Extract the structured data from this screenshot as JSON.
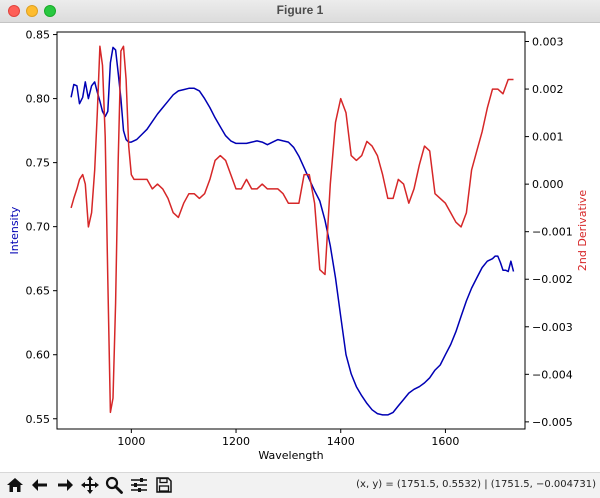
{
  "window": {
    "title": "Figure 1"
  },
  "toolbar": {
    "tools": [
      "home-icon",
      "back-arrow-icon",
      "forward-arrow-icon",
      "pan-icon",
      "zoom-icon",
      "configure-subplots-icon",
      "save-icon"
    ],
    "coords_text": "(x, y) = (1751.5, 0.5532) | (1751.5, −0.004731)"
  },
  "colors": {
    "intensity": "#0000b4",
    "derivative": "#d62728"
  },
  "chart_data": {
    "type": "line",
    "xlabel": "Wavelength",
    "ylabel_left": "Intensity",
    "ylabel_right": "2nd Derivative",
    "xlim": [
      858,
      1752
    ],
    "ylim_left": [
      0.542,
      0.852
    ],
    "ylim_right": [
      -0.00515,
      0.0032
    ],
    "x_ticks": [
      1000,
      1200,
      1400,
      1600
    ],
    "x_tick_labels": [
      "1000",
      "1200",
      "1400",
      "1600"
    ],
    "y_left_ticks": [
      0.55,
      0.6,
      0.65,
      0.7,
      0.75,
      0.8,
      0.85
    ],
    "y_left_tick_labels": [
      "0.55",
      "0.60",
      "0.65",
      "0.70",
      "0.75",
      "0.80",
      "0.85"
    ],
    "y_right_ticks": [
      -0.005,
      -0.004,
      -0.003,
      -0.002,
      -0.001,
      0.0,
      0.001,
      0.002,
      0.003
    ],
    "y_right_tick_labels": [
      "−0.005",
      "−0.004",
      "−0.003",
      "−0.002",
      "−0.001",
      "0.000",
      "0.001",
      "0.002",
      "0.003"
    ],
    "grid": false,
    "series": [
      {
        "axis": "left",
        "x": [
          885,
          890,
          896,
          901,
          907,
          912,
          918,
          924,
          930,
          935,
          940,
          945,
          950,
          955,
          960,
          965,
          970,
          975,
          980,
          985,
          990,
          995,
          1000,
          1010,
          1020,
          1030,
          1040,
          1050,
          1060,
          1070,
          1080,
          1090,
          1100,
          1110,
          1120,
          1130,
          1140,
          1150,
          1160,
          1170,
          1180,
          1190,
          1200,
          1210,
          1220,
          1230,
          1240,
          1250,
          1260,
          1270,
          1280,
          1290,
          1300,
          1310,
          1320,
          1330,
          1340,
          1350,
          1360,
          1370,
          1380,
          1390,
          1400,
          1410,
          1420,
          1430,
          1440,
          1450,
          1460,
          1470,
          1480,
          1490,
          1500,
          1510,
          1520,
          1530,
          1540,
          1550,
          1560,
          1570,
          1580,
          1590,
          1600,
          1610,
          1620,
          1630,
          1640,
          1650,
          1660,
          1670,
          1680,
          1690,
          1695,
          1700,
          1705,
          1710,
          1715,
          1720,
          1725,
          1730
        ],
        "y": [
          0.801,
          0.811,
          0.81,
          0.796,
          0.801,
          0.813,
          0.8,
          0.81,
          0.813,
          0.805,
          0.798,
          0.79,
          0.786,
          0.79,
          0.828,
          0.84,
          0.838,
          0.82,
          0.8,
          0.775,
          0.768,
          0.766,
          0.766,
          0.768,
          0.772,
          0.776,
          0.782,
          0.788,
          0.793,
          0.798,
          0.803,
          0.806,
          0.807,
          0.808,
          0.808,
          0.806,
          0.8,
          0.793,
          0.785,
          0.778,
          0.771,
          0.767,
          0.765,
          0.765,
          0.765,
          0.766,
          0.767,
          0.766,
          0.764,
          0.766,
          0.768,
          0.767,
          0.766,
          0.762,
          0.755,
          0.746,
          0.737,
          0.728,
          0.72,
          0.705,
          0.685,
          0.66,
          0.63,
          0.6,
          0.585,
          0.575,
          0.568,
          0.562,
          0.557,
          0.554,
          0.553,
          0.553,
          0.555,
          0.56,
          0.565,
          0.57,
          0.573,
          0.575,
          0.578,
          0.582,
          0.588,
          0.592,
          0.6,
          0.608,
          0.618,
          0.63,
          0.642,
          0.652,
          0.66,
          0.668,
          0.673,
          0.675,
          0.677,
          0.677,
          0.672,
          0.666,
          0.666,
          0.665,
          0.673,
          0.665
        ]
      },
      {
        "axis": "right",
        "x": [
          885,
          890,
          896,
          901,
          907,
          912,
          918,
          924,
          930,
          935,
          940,
          945,
          950,
          955,
          960,
          965,
          970,
          975,
          980,
          985,
          990,
          995,
          1000,
          1005,
          1010,
          1020,
          1030,
          1040,
          1050,
          1060,
          1070,
          1080,
          1090,
          1100,
          1110,
          1120,
          1130,
          1140,
          1150,
          1160,
          1170,
          1180,
          1190,
          1200,
          1210,
          1220,
          1230,
          1240,
          1250,
          1260,
          1270,
          1280,
          1290,
          1300,
          1310,
          1320,
          1330,
          1340,
          1350,
          1360,
          1370,
          1380,
          1390,
          1400,
          1410,
          1420,
          1430,
          1440,
          1450,
          1460,
          1470,
          1480,
          1490,
          1500,
          1510,
          1520,
          1530,
          1540,
          1550,
          1560,
          1570,
          1580,
          1590,
          1600,
          1610,
          1620,
          1630,
          1640,
          1650,
          1660,
          1670,
          1680,
          1690,
          1700,
          1710,
          1720,
          1730
        ],
        "y": [
          -0.0005,
          -0.0003,
          -0.0001,
          0.0001,
          0.0002,
          0.0,
          -0.0009,
          -0.0006,
          0.0003,
          0.0015,
          0.0029,
          0.0025,
          0.001,
          -0.002,
          -0.0048,
          -0.0045,
          -0.0025,
          0.0005,
          0.0028,
          0.0029,
          0.0022,
          0.0008,
          0.0002,
          0.0001,
          0.0001,
          0.0001,
          0.0001,
          -0.0001,
          0.0,
          -0.0001,
          -0.0003,
          -0.0006,
          -0.0007,
          -0.0004,
          -0.0002,
          -0.0002,
          -0.0003,
          -0.0002,
          0.0001,
          0.0005,
          0.0006,
          0.0005,
          0.0002,
          -0.0001,
          -0.0001,
          0.0001,
          -0.0001,
          -0.0001,
          0.0,
          -0.0001,
          -0.0001,
          -0.0001,
          -0.0002,
          -0.0004,
          -0.0004,
          -0.0004,
          0.0002,
          0.0002,
          -0.0004,
          -0.0018,
          -0.0019,
          0.0,
          0.0013,
          0.0018,
          0.0015,
          0.0006,
          0.0005,
          0.0006,
          0.0009,
          0.0008,
          0.0006,
          0.0002,
          -0.0003,
          -0.0003,
          0.0001,
          0.0,
          -0.0004,
          -0.0001,
          0.0004,
          0.0008,
          0.0007,
          -0.0002,
          -0.0003,
          -0.0004,
          -0.0006,
          -0.0008,
          -0.0009,
          -0.0006,
          0.0003,
          0.0007,
          0.0011,
          0.0016,
          0.002,
          0.002,
          0.0019,
          0.0022,
          0.0022
        ]
      }
    ]
  }
}
